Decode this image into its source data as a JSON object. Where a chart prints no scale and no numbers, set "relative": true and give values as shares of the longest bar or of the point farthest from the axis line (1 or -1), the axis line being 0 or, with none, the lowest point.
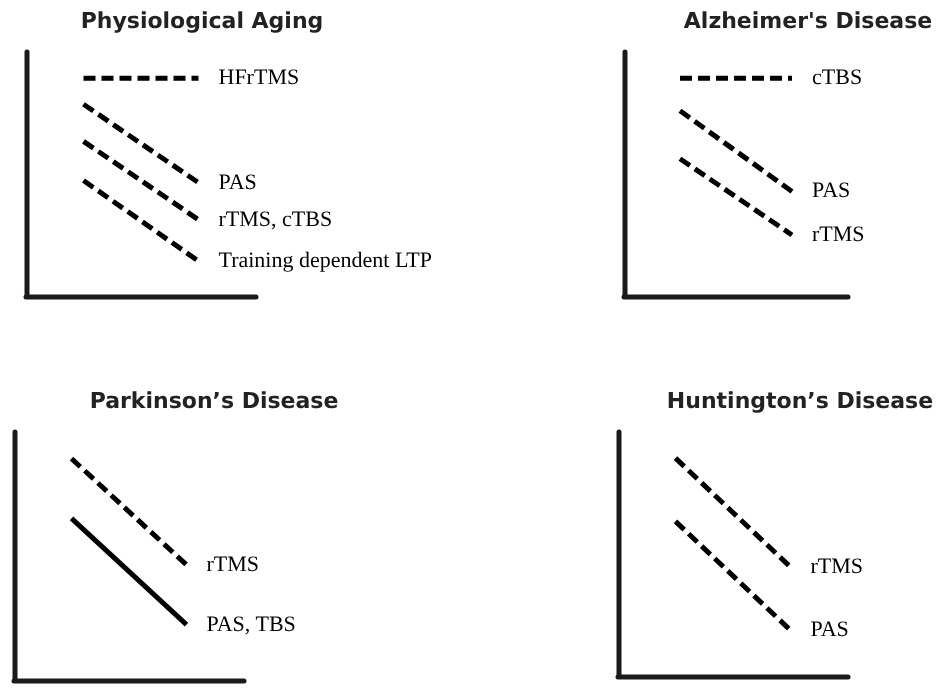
{
  "chart_data": [
    {
      "type": "line",
      "title": "Physiological Aging",
      "relative": true,
      "categories": [
        null,
        null
      ],
      "marker": "none",
      "legend": false,
      "grid": false,
      "series": [
        {
          "name": "HFrTMS",
          "color": "#000000",
          "line_style": "dashed",
          "values": [
            1,
            1
          ]
        },
        {
          "name": "PAS",
          "color": "#000000",
          "line_style": "dashed",
          "values": [
            0.88,
            0.52
          ]
        },
        {
          "name": "rTMS, cTBS",
          "color": "#000000",
          "line_style": "dashed",
          "values": [
            0.71,
            0.35
          ]
        },
        {
          "name": "Training dependent LTP",
          "color": "#000000",
          "line_style": "dashed",
          "values": [
            0.53,
            0.16
          ]
        }
      ]
    },
    {
      "type": "line",
      "title": "Alzheimer's Disease",
      "relative": true,
      "categories": [
        null,
        null
      ],
      "marker": "none",
      "legend": false,
      "grid": false,
      "series": [
        {
          "name": "cTBS",
          "color": "#000000",
          "line_style": "dashed",
          "values": [
            1,
            1
          ]
        },
        {
          "name": "PAS",
          "color": "#000000",
          "line_style": "dashed",
          "values": [
            0.85,
            0.48
          ]
        },
        {
          "name": "rTMS",
          "color": "#000000",
          "line_style": "dashed",
          "values": [
            0.63,
            0.28
          ]
        }
      ]
    },
    {
      "type": "line",
      "title": "Parkinson’s Disease",
      "relative": true,
      "categories": [
        null,
        null
      ],
      "marker": "none",
      "legend": false,
      "grid": false,
      "series": [
        {
          "name": "rTMS",
          "color": "#000000",
          "line_style": "dashed",
          "values": [
            1,
            0.52
          ]
        },
        {
          "name": "PAS, TBS",
          "color": "#000000",
          "line_style": "solid",
          "values": [
            0.73,
            0.25
          ]
        }
      ]
    },
    {
      "type": "line",
      "title": "Huntington’s Disease",
      "relative": true,
      "categories": [
        null,
        null
      ],
      "marker": "none",
      "legend": false,
      "grid": false,
      "series": [
        {
          "name": "rTMS",
          "color": "#000000",
          "line_style": "dashed",
          "values": [
            1,
            0.5
          ]
        },
        {
          "name": "PAS",
          "color": "#000000",
          "line_style": "dashed",
          "values": [
            0.71,
            0.21
          ]
        }
      ]
    }
  ]
}
